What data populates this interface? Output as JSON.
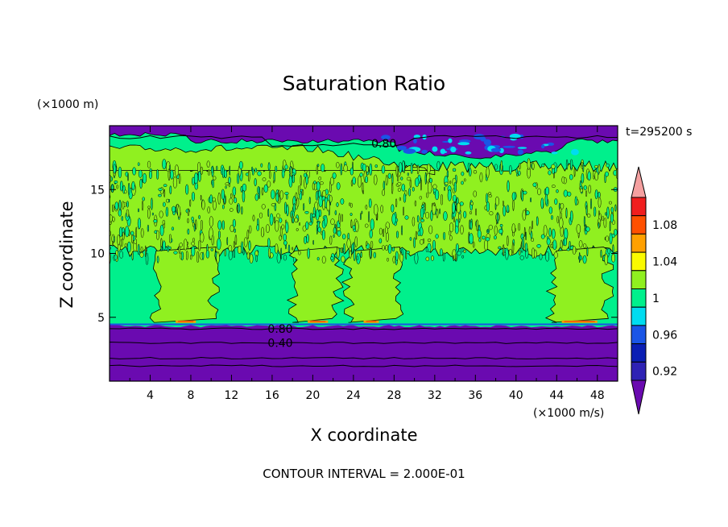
{
  "chart_data": {
    "type": "heatmap",
    "title": "Saturation Ratio",
    "xlabel": "X coordinate",
    "ylabel": "Z coordinate",
    "x_unit": "(×1000 m/s)",
    "y_unit": "(×1000 m)",
    "time_label": "t=295200 s",
    "footer": "CONTOUR INTERVAL = 2.000E-01",
    "xlim": [
      0,
      50
    ],
    "ylim": [
      0,
      20
    ],
    "x_ticks": [
      4,
      8,
      12,
      16,
      20,
      24,
      28,
      32,
      36,
      40,
      44,
      48
    ],
    "y_ticks": [
      5,
      10,
      15
    ],
    "contour_labels": [
      {
        "text": "0.80",
        "x": 27,
        "y": 18.6
      },
      {
        "text": "0.80",
        "x": 16.8,
        "y": 4.1
      },
      {
        "text": "0.40",
        "x": 16.8,
        "y": 3.0
      }
    ],
    "colorbar": {
      "levels": [
        0.92,
        0.96,
        1,
        1.04,
        1.08
      ],
      "level_labels": [
        "0.92",
        "0.96",
        "1",
        "1.04",
        "1.08"
      ],
      "colors": [
        "#6a0ab0",
        "#2e22b4",
        "#0a1eb4",
        "#1a55e6",
        "#00dcf0",
        "#00f08c",
        "#90f020",
        "#fafa00",
        "#ffa000",
        "#ff5000",
        "#f01e1e",
        "#f5a0a0"
      ]
    },
    "regions": {
      "dry_color": "#6a0ab0",
      "moist_color": "#00f08c",
      "supersat_color": "#90f020",
      "peak_color": "#ffa000",
      "lower_dry_top": 4.3,
      "upper_dry_bottom": 18.8
    }
  }
}
